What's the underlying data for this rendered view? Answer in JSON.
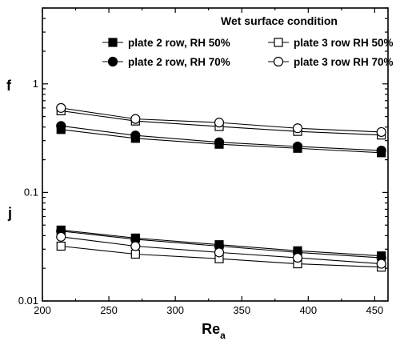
{
  "chart_data": {
    "type": "line",
    "x_axis": {
      "label_main": "Re",
      "label_sub": "a",
      "min": 200,
      "max": 460,
      "ticks": [
        200,
        250,
        300,
        350,
        400,
        450
      ],
      "tick_labels": [
        "200",
        "250",
        "300",
        "350",
        "400",
        "450"
      ]
    },
    "y_axis": {
      "scale": "log",
      "min": 0.01,
      "max": 5,
      "ticks": [
        0.01,
        0.1,
        1
      ],
      "tick_labels": [
        "0.01",
        "0.1",
        "1"
      ]
    },
    "side_labels": {
      "upper": "f",
      "lower": "j"
    },
    "legend": {
      "title": "Wet surface condition",
      "placement": "top-right",
      "entries": [
        {
          "label": "plate 2 row, RH 50%",
          "marker": "square",
          "filled": true
        },
        {
          "label": "plate 3 row RH 50%",
          "marker": "square",
          "filled": false
        },
        {
          "label": "plate 2 row, RH 70%",
          "marker": "circle",
          "filled": true
        },
        {
          "label": "plate 3 row RH 70%",
          "marker": "circle",
          "filled": false
        }
      ]
    },
    "x": [
      214,
      270,
      333,
      392,
      455
    ],
    "series": [
      {
        "name": "plate 2 row, RH 50%",
        "group": "f",
        "marker": "square",
        "filled": true,
        "values": [
          0.38,
          0.315,
          0.278,
          0.255,
          0.232
        ]
      },
      {
        "name": "plate 3 row RH 50%",
        "group": "f",
        "marker": "square",
        "filled": false,
        "values": [
          0.565,
          0.455,
          0.405,
          0.365,
          0.338
        ]
      },
      {
        "name": "plate 2 row, RH 70%",
        "group": "f",
        "marker": "circle",
        "filled": true,
        "values": [
          0.41,
          0.335,
          0.29,
          0.265,
          0.243
        ]
      },
      {
        "name": "plate 3 row RH 70%",
        "group": "f",
        "marker": "circle",
        "filled": false,
        "values": [
          0.6,
          0.475,
          0.44,
          0.39,
          0.36
        ]
      },
      {
        "name": "plate 2 row, RH 50%",
        "group": "j",
        "marker": "square",
        "filled": true,
        "values": [
          0.045,
          0.038,
          0.033,
          0.029,
          0.026
        ]
      },
      {
        "name": "plate 3 row RH 50%",
        "group": "j",
        "marker": "square",
        "filled": false,
        "values": [
          0.032,
          0.027,
          0.0245,
          0.022,
          0.0205
        ]
      },
      {
        "name": "plate 2 row, RH 70%",
        "group": "j",
        "marker": "circle",
        "filled": true,
        "values": [
          0.044,
          0.037,
          0.032,
          0.028,
          0.025
        ]
      },
      {
        "name": "plate 3 row RH 70%",
        "group": "j",
        "marker": "circle",
        "filled": false,
        "values": [
          0.039,
          0.032,
          0.028,
          0.025,
          0.022
        ]
      }
    ],
    "grid": false
  }
}
